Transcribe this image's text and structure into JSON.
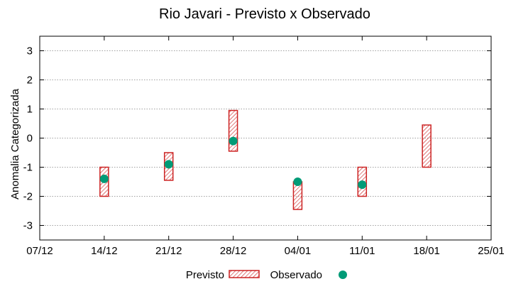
{
  "chart_data": {
    "type": "range-and-point",
    "title": "Rio Javari - Previsto x Observado",
    "xlabel": "",
    "ylabel": "Anomalia Categorizada",
    "x_ticks": [
      "07/12",
      "14/12",
      "21/12",
      "28/12",
      "04/01",
      "11/01",
      "18/01",
      "25/01"
    ],
    "xlim": [
      0,
      7
    ],
    "ylim": [
      -3.5,
      3.5
    ],
    "y_ticks": [
      3,
      2,
      1,
      0,
      -1,
      -2,
      -3
    ],
    "grid": true,
    "legend_position": "bottom-center",
    "series": [
      {
        "name": "Previsto",
        "kind": "range-bar",
        "color": "#cc2222",
        "points": [
          {
            "x": 1.0,
            "low": -2.0,
            "high": -1.0
          },
          {
            "x": 2.0,
            "low": -1.45,
            "high": -0.5
          },
          {
            "x": 3.0,
            "low": -0.45,
            "high": 0.95
          },
          {
            "x": 4.0,
            "low": -2.45,
            "high": -1.5
          },
          {
            "x": 5.0,
            "low": -2.0,
            "high": -1.0
          },
          {
            "x": 6.0,
            "low": -1.0,
            "high": 0.45
          }
        ]
      },
      {
        "name": "Observado",
        "kind": "point",
        "color": "#009b77",
        "points": [
          {
            "x": 1.0,
            "y": -1.4
          },
          {
            "x": 2.0,
            "y": -0.9
          },
          {
            "x": 3.0,
            "y": -0.1
          },
          {
            "x": 4.0,
            "y": -1.5
          },
          {
            "x": 5.0,
            "y": -1.6
          }
        ]
      }
    ]
  }
}
